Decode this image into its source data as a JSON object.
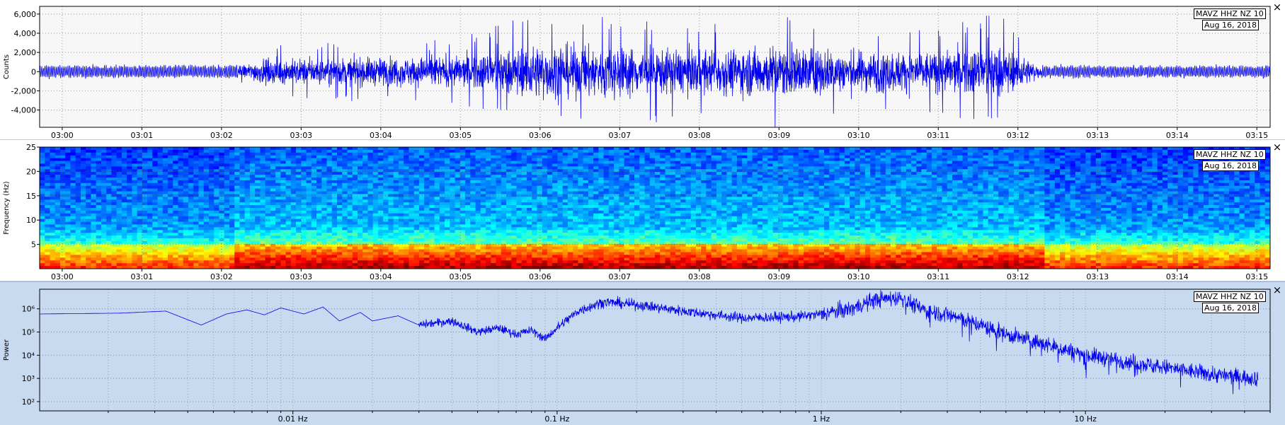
{
  "station": "MAVZ HHZ NZ 10",
  "date": "Aug 16, 2018",
  "close_glyph": "×",
  "panels": {
    "waveform": {
      "ylabel": "Counts",
      "close_icon": "close-icon"
    },
    "spectrogram": {
      "ylabel": "Frequency (Hz)",
      "close_icon": "close-icon"
    },
    "spectrum": {
      "ylabel": "Power",
      "close_icon": "close-icon"
    }
  },
  "colors": {
    "trace": "#0000ee",
    "grid": "#9a9a9a",
    "psd_bg": "#c8daf0"
  },
  "chart_data": [
    {
      "type": "line",
      "id": "waveform",
      "ylabel": "Counts",
      "xlabel": "",
      "yticks": [
        6000,
        4000,
        2000,
        0,
        -2000,
        -4000
      ],
      "ytick_labels": [
        "6,000",
        "4,000",
        "2,000",
        "0",
        "-2,000",
        "-4,000"
      ],
      "ylim": [
        -5800,
        6800
      ],
      "xlim": [
        "02:59:43",
        "03:15:10"
      ],
      "xticks": [
        "03:00",
        "03:01",
        "03:02",
        "03:03",
        "03:04",
        "03:05",
        "03:06",
        "03:07",
        "03:08",
        "03:09",
        "03:10",
        "03:11",
        "03:12",
        "03:13",
        "03:14",
        "03:15"
      ],
      "amplitude_envelope": {
        "time": [
          "02:59:43",
          "03:02:10",
          "03:02:30",
          "03:05:00",
          "03:06:00",
          "03:07:00",
          "03:08:00",
          "03:09:00",
          "03:10:00",
          "03:11:00",
          "03:11:45",
          "03:12:10",
          "03:12:20",
          "03:15:10"
        ],
        "peak_counts": [
          900,
          1000,
          2800,
          3600,
          6300,
          5800,
          4800,
          6000,
          4800,
          4600,
          6200,
          2500,
          900,
          900
        ]
      },
      "grid": true
    },
    {
      "type": "heatmap",
      "id": "spectrogram",
      "ylabel": "Frequency (Hz)",
      "yticks": [
        5,
        10,
        15,
        20,
        25
      ],
      "ylim": [
        0,
        25
      ],
      "xlim": [
        "02:59:43",
        "03:15:10"
      ],
      "xticks": [
        "03:00",
        "03:01",
        "03:02",
        "03:03",
        "03:04",
        "03:05",
        "03:06",
        "03:07",
        "03:08",
        "03:09",
        "03:10",
        "03:11",
        "03:12",
        "03:13",
        "03:14",
        "03:15"
      ],
      "colormap": "jet",
      "strong_band_hz": [
        0,
        5
      ],
      "active_interval": [
        "03:02:10",
        "03:12:20"
      ],
      "grid": true
    },
    {
      "type": "line",
      "id": "spectrum",
      "ylabel": "Power",
      "yscale": "log",
      "yticks": [
        100,
        1000,
        10000,
        100000,
        1000000
      ],
      "ytick_labels": [
        "10²",
        "10³",
        "10⁴",
        "10⁵",
        "10⁶"
      ],
      "xscale": "log",
      "xlim": [
        0.0011,
        50
      ],
      "xticks": [
        0.01,
        0.1,
        1,
        10
      ],
      "xtick_labels": [
        "0.01 Hz",
        "0.1 Hz",
        "1 Hz",
        "10 Hz"
      ],
      "series": [
        {
          "x": [
            0.0011,
            0.0022,
            0.0033,
            0.0045,
            0.0056,
            0.0067,
            0.0078,
            0.009,
            0.011,
            0.013,
            0.015,
            0.018,
            0.02,
            0.025,
            0.03,
            0.04,
            0.05,
            0.06,
            0.07,
            0.08,
            0.09,
            0.1,
            0.12,
            0.15,
            0.2,
            0.3,
            0.5,
            0.8,
            1.0,
            1.3,
            1.6,
            2.0,
            2.5,
            3.0,
            4.0,
            5.0,
            7.0,
            10.0,
            15.0,
            20.0,
            30.0,
            45.0
          ],
          "y": [
            600000,
            650000,
            800000,
            200000,
            600000,
            900000,
            550000,
            1100000,
            600000,
            1200000,
            300000,
            700000,
            300000,
            500000,
            200000,
            300000,
            100000,
            150000,
            80000,
            120000,
            50000,
            150000,
            800000,
            2000000,
            1500000,
            800000,
            400000,
            450000,
            600000,
            1000000,
            2500000,
            3000000,
            800000,
            600000,
            200000,
            80000,
            30000,
            10000,
            5000,
            3000,
            1500,
            1000
          ]
        }
      ],
      "grid": true
    }
  ]
}
